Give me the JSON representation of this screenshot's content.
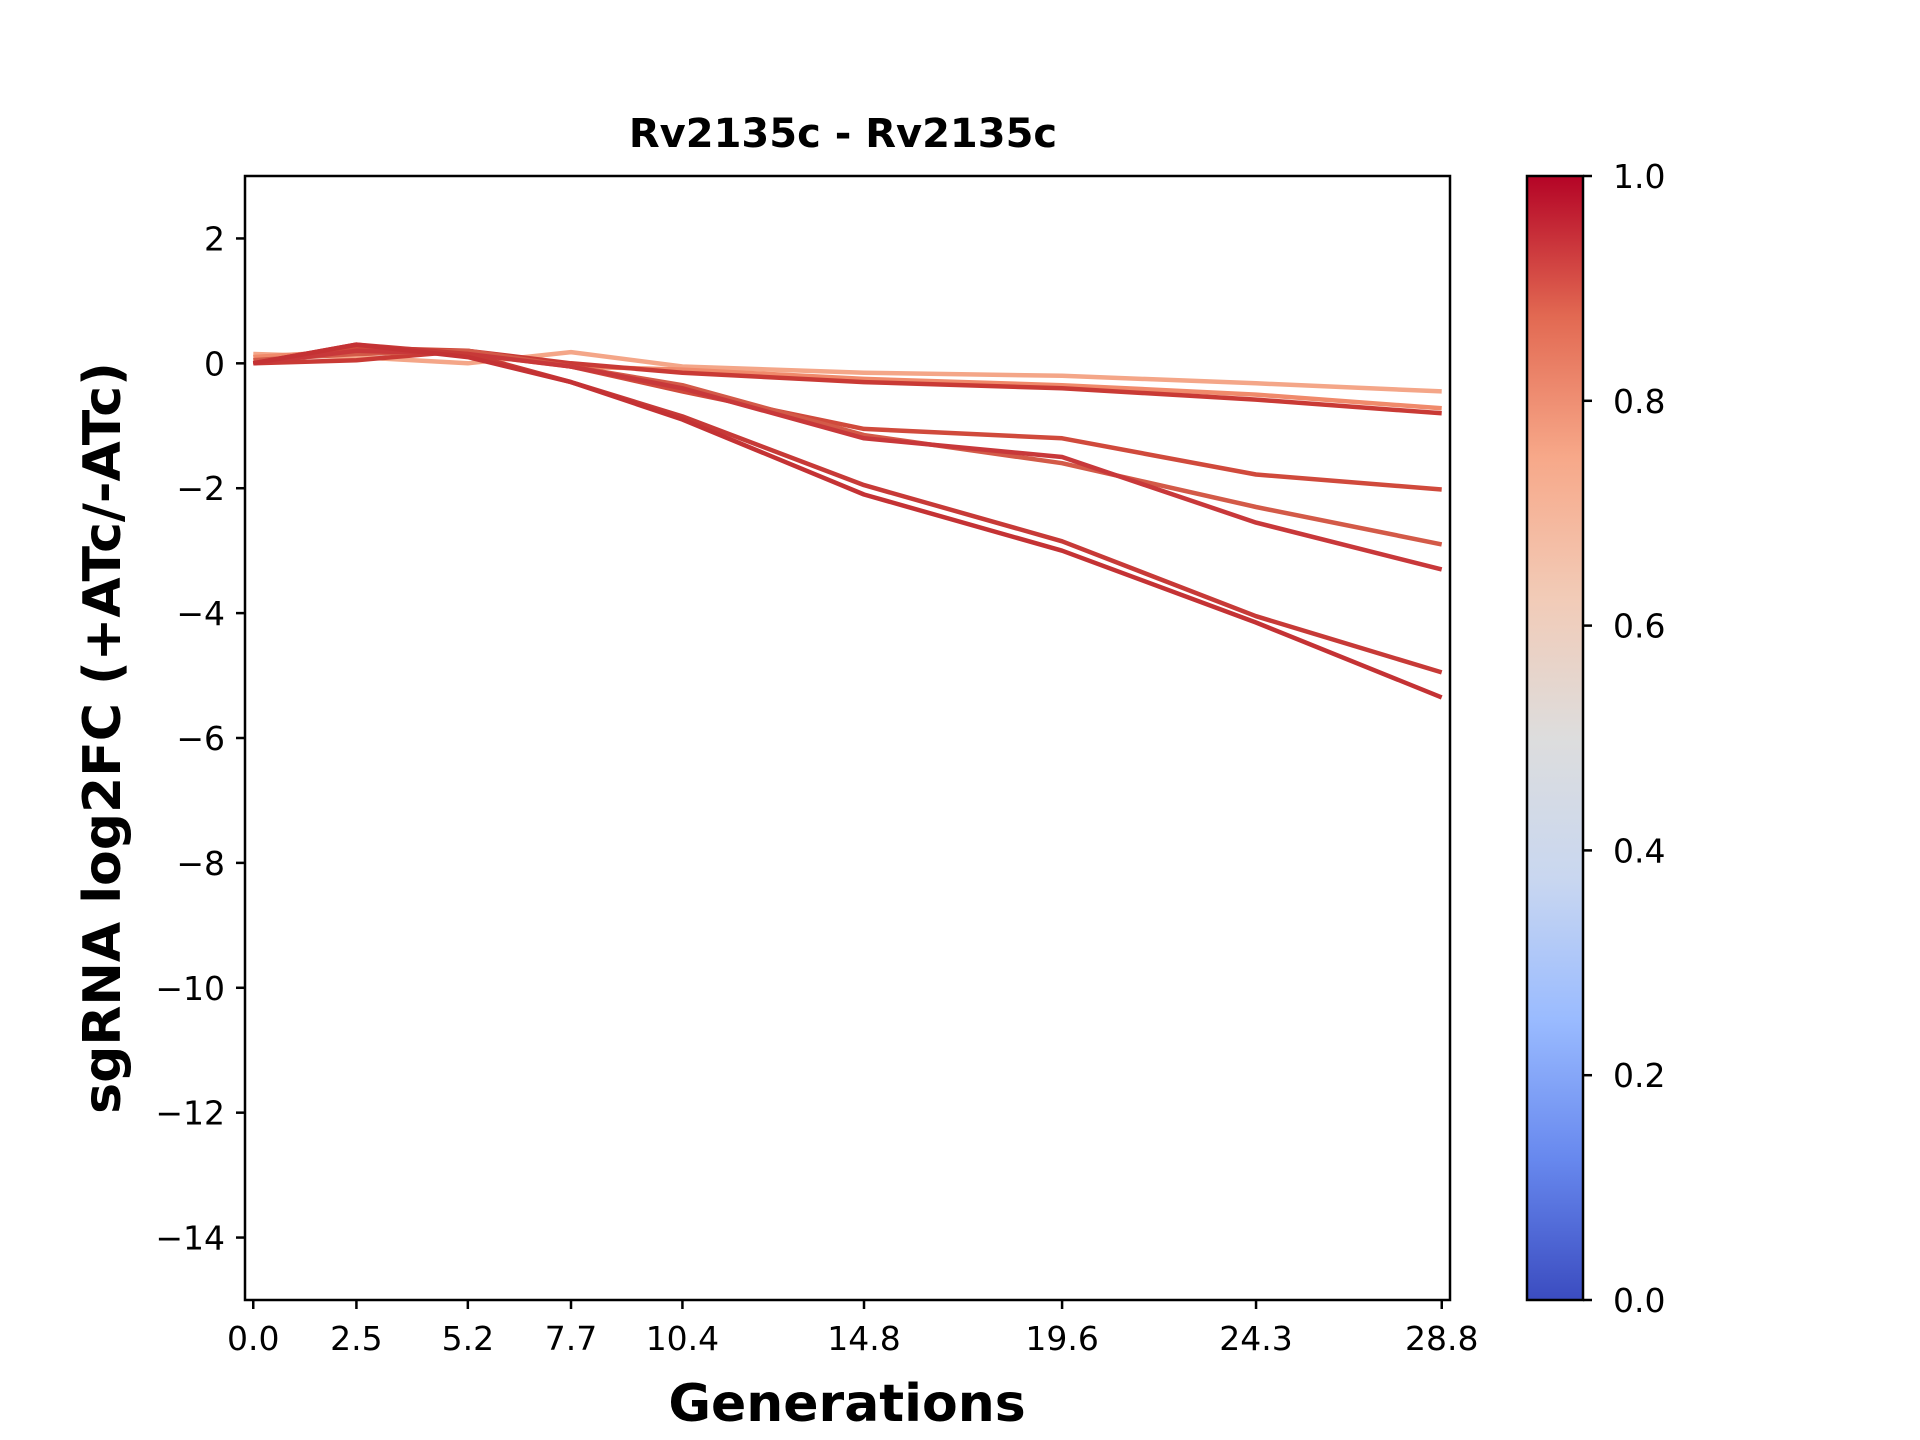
{
  "chart_data": {
    "type": "line",
    "title": "Rv2135c - Rv2135c",
    "xlabel": "Generations",
    "ylabel": "sgRNA log2FC (+ATc/-ATc)",
    "x": [
      0.0,
      2.5,
      5.2,
      7.7,
      10.4,
      14.8,
      19.6,
      24.3,
      28.8
    ],
    "x_tick_labels": [
      "0.0",
      "2.5",
      "5.2",
      "7.7",
      "10.4",
      "14.8",
      "19.6",
      "24.3",
      "28.8"
    ],
    "xlim": [
      -0.2,
      29.0
    ],
    "ylim": [
      -15,
      3
    ],
    "y_ticks": [
      2,
      0,
      -2,
      -4,
      -6,
      -8,
      -10,
      -12,
      -14
    ],
    "y_tick_labels": [
      "2",
      "0",
      "−2",
      "−4",
      "−6",
      "−8",
      "−10",
      "−12",
      "−14"
    ],
    "grid": false,
    "colormap": "coolwarm",
    "colorbar": {
      "range": [
        0.0,
        1.0
      ],
      "ticks": [
        0.0,
        0.2,
        0.4,
        0.6,
        0.8,
        1.0
      ],
      "tick_labels": [
        "0.0",
        "0.2",
        "0.4",
        "0.6",
        "0.8",
        "1.0"
      ],
      "stops": [
        "#3b4cc0",
        "#6788ee",
        "#9abbff",
        "#c9d7f0",
        "#dddddd",
        "#f2cbb7",
        "#f7a889",
        "#e26952",
        "#b40426"
      ]
    },
    "series": [
      {
        "color": "#f4a688",
        "values": [
          0.15,
          0.1,
          0.0,
          0.18,
          -0.05,
          -0.15,
          -0.2,
          -0.32,
          -0.45
        ]
      },
      {
        "color": "#f08a6b",
        "values": [
          0.1,
          0.2,
          0.15,
          -0.05,
          -0.1,
          -0.25,
          -0.35,
          -0.5,
          -0.72
        ]
      },
      {
        "color": "#c93a35",
        "values": [
          0.0,
          0.05,
          0.2,
          0.0,
          -0.15,
          -0.3,
          -0.4,
          -0.58,
          -0.8
        ]
      },
      {
        "color": "#d04a3c",
        "values": [
          0.0,
          0.25,
          0.2,
          -0.05,
          -0.45,
          -1.05,
          -1.2,
          -1.78,
          -2.02
        ]
      },
      {
        "color": "#d35a48",
        "values": [
          0.05,
          0.15,
          0.2,
          -0.05,
          -0.35,
          -1.15,
          -1.6,
          -2.3,
          -2.9
        ]
      },
      {
        "color": "#c8383a",
        "values": [
          0.0,
          0.2,
          0.15,
          -0.05,
          -0.4,
          -1.2,
          -1.5,
          -2.55,
          -3.3
        ]
      },
      {
        "color": "#c73a37",
        "values": [
          0.0,
          0.3,
          0.15,
          -0.3,
          -0.85,
          -1.95,
          -2.85,
          -4.05,
          -4.95
        ]
      },
      {
        "color": "#c43234",
        "values": [
          0.0,
          0.3,
          0.1,
          -0.3,
          -0.9,
          -2.1,
          -3.0,
          -4.15,
          -5.35
        ]
      }
    ]
  }
}
